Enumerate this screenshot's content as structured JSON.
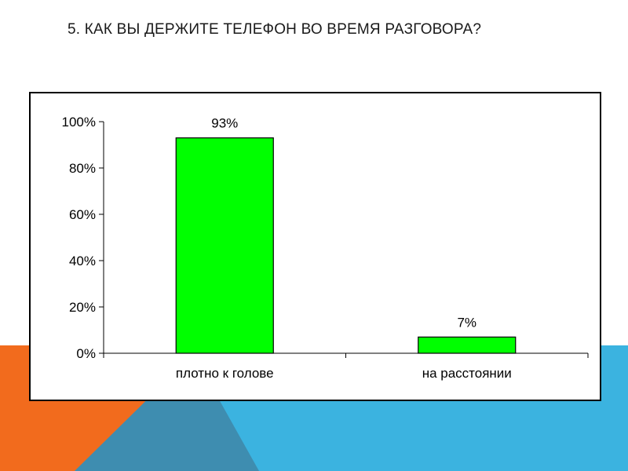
{
  "slide": {
    "title": "5. КАК  ВЫ ДЕРЖИТЕ ТЕЛЕФОН ВО ВРЕМЯ РАЗГОВОРА?",
    "colors": {
      "background": "#ffffff",
      "orange": "#f26b1d",
      "blue_light": "#3bb3e0",
      "blue_dark": "#3e8db0"
    }
  },
  "chart_data": {
    "type": "bar",
    "title": "",
    "xlabel": "",
    "ylabel": "",
    "categories": [
      "плотно к голове",
      "на расстоянии"
    ],
    "values": [
      93,
      7
    ],
    "value_labels": [
      "93%",
      "7%"
    ],
    "ylim": [
      0,
      100
    ],
    "yticks": [
      0,
      20,
      40,
      60,
      80,
      100
    ],
    "ytick_labels": [
      "0%",
      "20%",
      "40%",
      "60%",
      "80%",
      "100%"
    ],
    "bar_color": "#00ff00",
    "bar_edge_color": "#000000",
    "grid": false,
    "legend": "none"
  }
}
